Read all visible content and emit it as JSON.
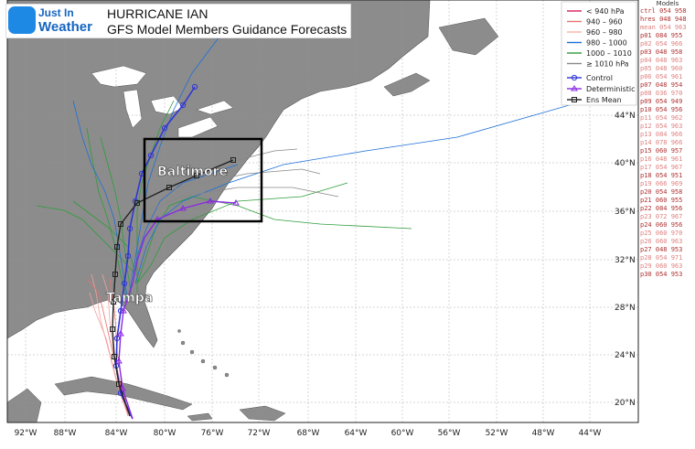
{
  "header": {
    "logo_line1": "Just In",
    "logo_line2": "Weather",
    "title": "HURRICANE IAN",
    "subtitle": "GFS Model Members Guidance Forecasts"
  },
  "cities": {
    "baltimore": "Baltimore",
    "tampa": "Tampa"
  },
  "lon_ticks": [
    "92°W",
    "88°W",
    "84°W",
    "80°W",
    "76°W",
    "72°W",
    "68°W",
    "64°W",
    "60°W",
    "56°W",
    "52°W",
    "48°W",
    "44°W"
  ],
  "lat_ticks": [
    "44°N",
    "40°N",
    "36°N",
    "32°N",
    "28°N",
    "24°N",
    "20°N"
  ],
  "pressure_legend": [
    {
      "label": "< 940 hPa",
      "color": "#d81b60"
    },
    {
      "label": "940 – 960",
      "color": "#e57373"
    },
    {
      "label": "960 – 980",
      "color": "#f5b7a0"
    },
    {
      "label": "980 – 1000",
      "color": "#1e6fd9"
    },
    {
      "label": "1000 – 1010",
      "color": "#2e9d3a"
    },
    {
      "label": "≥ 1010 hPa",
      "color": "#888888"
    }
  ],
  "track_legend": [
    {
      "label": "Control",
      "color": "#2f36d6"
    },
    {
      "label": "Deterministic",
      "color": "#8a2be2"
    },
    {
      "label": "Ens Mean",
      "color": "#222222"
    }
  ],
  "models_header": "Models",
  "models": [
    {
      "text": "ctrl 054 958",
      "color": "#b03030"
    },
    {
      "text": "hres 048 948",
      "color": "#b03030"
    },
    {
      "text": "mean 054 963",
      "color": "#e08080"
    },
    {
      "text": "p01 084 955",
      "color": "#b03030"
    },
    {
      "text": "p02 054 966",
      "color": "#e08080"
    },
    {
      "text": "p03 048 958",
      "color": "#b03030"
    },
    {
      "text": "p04 048 963",
      "color": "#e08080"
    },
    {
      "text": "p05 048 960",
      "color": "#e08080"
    },
    {
      "text": "p06 054 961",
      "color": "#e08080"
    },
    {
      "text": "p07 048 954",
      "color": "#b03030"
    },
    {
      "text": "p08 036 970",
      "color": "#e08080"
    },
    {
      "text": "p09 054 949",
      "color": "#b03030"
    },
    {
      "text": "p10 054 956",
      "color": "#b03030"
    },
    {
      "text": "p11 054 962",
      "color": "#e08080"
    },
    {
      "text": "p12 054 963",
      "color": "#e08080"
    },
    {
      "text": "p13 084 966",
      "color": "#e08080"
    },
    {
      "text": "p14 078 966",
      "color": "#e08080"
    },
    {
      "text": "p15 060 957",
      "color": "#b03030"
    },
    {
      "text": "p16 048 961",
      "color": "#e08080"
    },
    {
      "text": "p17 054 967",
      "color": "#e08080"
    },
    {
      "text": "p18 054 951",
      "color": "#b03030"
    },
    {
      "text": "p19 066 969",
      "color": "#e08080"
    },
    {
      "text": "p20 054 958",
      "color": "#b03030"
    },
    {
      "text": "p21 060 955",
      "color": "#b03030"
    },
    {
      "text": "p22 084 956",
      "color": "#b03030"
    },
    {
      "text": "p23 072 967",
      "color": "#e08080"
    },
    {
      "text": "p24 060 956",
      "color": "#b03030"
    },
    {
      "text": "p25 060 970",
      "color": "#e08080"
    },
    {
      "text": "p26 060 963",
      "color": "#e08080"
    },
    {
      "text": "p27 048 953",
      "color": "#b03030"
    },
    {
      "text": "p28 054 971",
      "color": "#e08080"
    },
    {
      "text": "p29 060 963",
      "color": "#e08080"
    },
    {
      "text": "p30 054 953",
      "color": "#b03030"
    }
  ]
}
